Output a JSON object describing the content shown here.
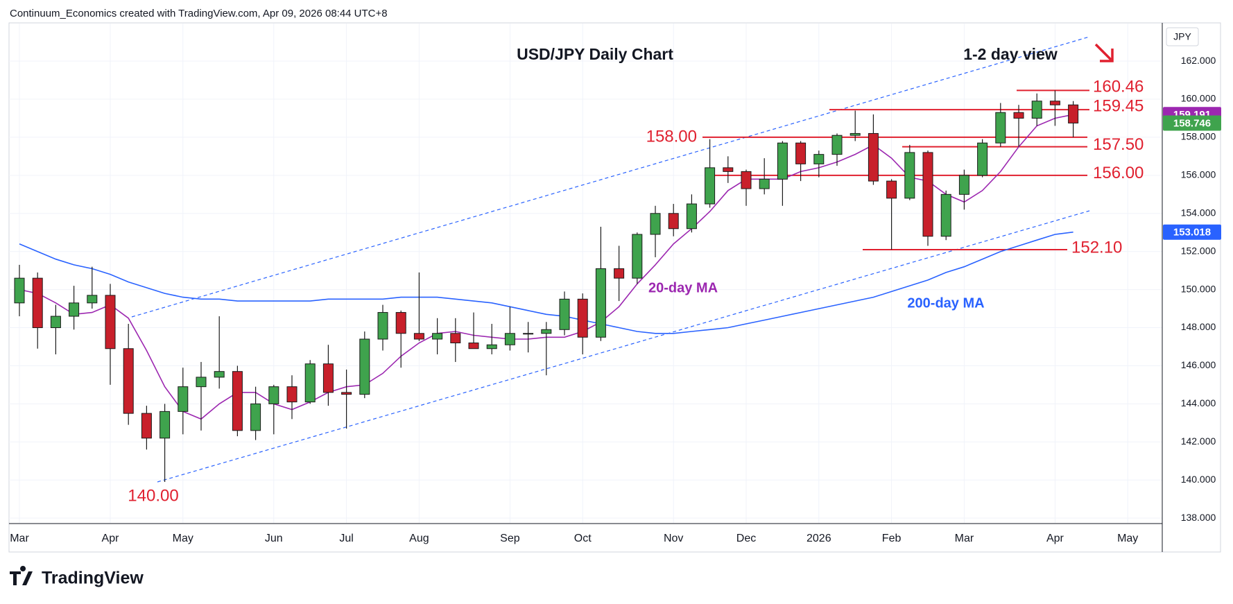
{
  "header": "Continuum_Economics created with TradingView.com, Apr 09, 2026 08:44 UTC+8",
  "footer": "TradingView",
  "chart_data": {
    "type": "candlestick",
    "title": "USD/JPY Daily Chart",
    "annotation": "1-2 day view",
    "axis_label": "JPY",
    "up_color": "#3fa34d",
    "down_color": "#c8202b",
    "outline_color": "#1a1a1a",
    "categories": [
      "Mar",
      null,
      null,
      null,
      null,
      "Apr",
      null,
      null,
      null,
      "May",
      null,
      null,
      null,
      null,
      "Jun",
      null,
      null,
      null,
      "Jul",
      null,
      null,
      null,
      "Aug",
      null,
      null,
      null,
      null,
      "Sep",
      null,
      null,
      null,
      "Oct",
      null,
      null,
      null,
      null,
      "Nov",
      null,
      null,
      null,
      "Dec",
      null,
      null,
      null,
      "2026",
      null,
      null,
      null,
      "Feb",
      null,
      null,
      null,
      "Mar",
      null,
      null,
      null,
      null,
      "Apr",
      null,
      null,
      null,
      "May"
    ],
    "open": [
      149.3,
      150.6,
      148.0,
      148.6,
      149.3,
      149.7,
      146.9,
      143.5,
      142.2,
      143.6,
      144.9,
      145.4,
      145.7,
      142.6,
      144.0,
      144.9,
      144.1,
      146.1,
      144.6,
      144.5,
      147.4,
      148.8,
      147.7,
      147.4,
      147.7,
      147.2,
      146.9,
      147.1,
      147.7,
      147.7,
      147.9,
      149.5,
      147.5,
      151.1,
      150.6,
      152.9,
      154.0,
      153.2,
      154.5,
      156.4,
      156.2,
      155.3,
      155.8,
      157.7,
      156.6,
      157.1,
      158.1,
      158.2,
      155.7,
      154.8,
      157.2,
      152.8,
      155.0,
      156.0,
      157.7,
      159.3,
      159.0,
      159.9,
      159.7,
      null,
      null,
      null
    ],
    "high": [
      151.3,
      150.9,
      149.2,
      150.2,
      151.2,
      150.3,
      148.2,
      143.9,
      144.0,
      145.9,
      146.2,
      148.6,
      146.0,
      144.9,
      145.0,
      145.5,
      146.3,
      147.1,
      145.8,
      147.8,
      149.2,
      148.9,
      150.9,
      148.5,
      148.5,
      148.8,
      148.2,
      149.1,
      148.3,
      148.3,
      149.9,
      149.8,
      153.3,
      152.3,
      153.0,
      154.4,
      154.5,
      155.0,
      157.9,
      157.0,
      156.3,
      156.9,
      157.8,
      157.8,
      157.3,
      158.2,
      159.4,
      159.2,
      155.8,
      157.6,
      157.3,
      155.2,
      156.3,
      157.9,
      159.8,
      159.7,
      160.3,
      160.46,
      159.9,
      null,
      null,
      null
    ],
    "low": [
      148.6,
      146.9,
      146.6,
      147.9,
      149.0,
      145.0,
      142.9,
      141.6,
      139.9,
      142.4,
      142.6,
      144.8,
      142.3,
      142.1,
      142.4,
      143.2,
      144.0,
      143.9,
      142.7,
      144.3,
      146.8,
      145.9,
      147.3,
      146.6,
      146.2,
      146.9,
      146.6,
      146.8,
      146.7,
      145.5,
      147.6,
      146.6,
      147.3,
      149.4,
      150.3,
      151.7,
      152.8,
      153.0,
      154.3,
      155.6,
      154.4,
      155.0,
      154.4,
      155.7,
      155.9,
      156.5,
      157.8,
      155.5,
      152.1,
      154.7,
      152.3,
      152.6,
      154.2,
      155.9,
      157.5,
      157.5,
      158.6,
      158.6,
      158.0,
      null,
      null,
      null
    ],
    "close": [
      150.6,
      148.0,
      148.6,
      149.3,
      149.7,
      146.9,
      143.5,
      142.2,
      143.6,
      144.9,
      145.4,
      145.7,
      142.6,
      144.0,
      144.9,
      144.1,
      146.1,
      144.6,
      144.5,
      147.4,
      148.8,
      147.7,
      147.4,
      147.7,
      147.2,
      146.9,
      147.1,
      147.7,
      147.7,
      147.9,
      149.5,
      147.5,
      151.1,
      150.6,
      152.9,
      154.0,
      153.2,
      154.5,
      156.4,
      156.2,
      155.3,
      155.8,
      157.7,
      156.6,
      157.1,
      158.1,
      158.2,
      155.7,
      154.8,
      157.2,
      152.8,
      155.0,
      156.0,
      157.7,
      159.3,
      159.0,
      159.9,
      159.7,
      158.746,
      null,
      null,
      null
    ],
    "series": [
      {
        "name": "20-day MA",
        "color": "#9c27b0",
        "values": [
          150.0,
          149.8,
          149.3,
          148.7,
          148.8,
          149.2,
          148.5,
          146.8,
          144.9,
          143.6,
          143.2,
          144.0,
          144.6,
          144.6,
          144.0,
          143.7,
          144.1,
          144.6,
          144.9,
          145.0,
          145.6,
          146.5,
          147.2,
          147.7,
          147.8,
          147.6,
          147.5,
          147.4,
          147.4,
          147.5,
          147.5,
          147.8,
          148.3,
          149.1,
          150.3,
          151.3,
          152.4,
          153.2,
          154.1,
          155.2,
          155.8,
          155.8,
          155.8,
          156.2,
          156.4,
          156.7,
          157.1,
          157.6,
          156.9,
          155.9,
          155.7,
          155.0,
          154.6,
          155.2,
          156.2,
          157.5,
          158.6,
          159.0,
          159.191,
          null,
          null,
          null
        ]
      },
      {
        "name": "200-day MA",
        "color": "#2962ff",
        "values": [
          152.4,
          152.0,
          151.6,
          151.3,
          151.1,
          150.8,
          150.4,
          150.1,
          149.8,
          149.6,
          149.5,
          149.5,
          149.4,
          149.4,
          149.4,
          149.4,
          149.4,
          149.5,
          149.5,
          149.5,
          149.5,
          149.6,
          149.6,
          149.6,
          149.5,
          149.4,
          149.3,
          149.1,
          148.9,
          148.7,
          148.6,
          148.4,
          148.2,
          148.0,
          147.8,
          147.7,
          147.7,
          147.8,
          147.9,
          148.0,
          148.2,
          148.4,
          148.6,
          148.8,
          149.0,
          149.2,
          149.4,
          149.6,
          149.9,
          150.2,
          150.5,
          150.9,
          151.2,
          151.6,
          152.0,
          152.3,
          152.6,
          152.9,
          153.018,
          null,
          null,
          null
        ]
      }
    ],
    "price_labels": [
      {
        "value": 159.191,
        "color": "#9c27b0"
      },
      {
        "value": 158.746,
        "color": "#3fa34d"
      },
      {
        "value": 153.018,
        "color": "#2962ff"
      }
    ],
    "levels": [
      160.46,
      159.45,
      {
        "value": 158,
        "label": "158.00"
      },
      {
        "value": 157.5,
        "label": "157.50"
      },
      {
        "value": 156,
        "label": "156.00"
      },
      {
        "value": 152.1,
        "label": "152.10"
      },
      {
        "value": 140,
        "label": "140.00"
      }
    ],
    "level_color": "#e0202f",
    "ylim": [
      137.75,
      163.97
    ],
    "yticks": [
      {
        "value": 138,
        "label": "138.000"
      },
      {
        "value": 140,
        "label": "140.000"
      },
      {
        "value": 142,
        "label": "142.000"
      },
      {
        "value": 144,
        "label": "144.000"
      },
      {
        "value": 146,
        "label": "146.000"
      },
      {
        "value": 148,
        "label": "148.000"
      },
      {
        "value": 150,
        "label": "150.000"
      },
      {
        "value": 152,
        "label": "152.000"
      },
      {
        "value": 154,
        "label": "154.000"
      },
      {
        "value": 156,
        "label": "156.000"
      },
      {
        "value": 158,
        "label": "158.000"
      },
      {
        "value": 160,
        "label": "160.000"
      },
      {
        "value": 162,
        "label": "162.000"
      }
    ],
    "grid": true
  }
}
